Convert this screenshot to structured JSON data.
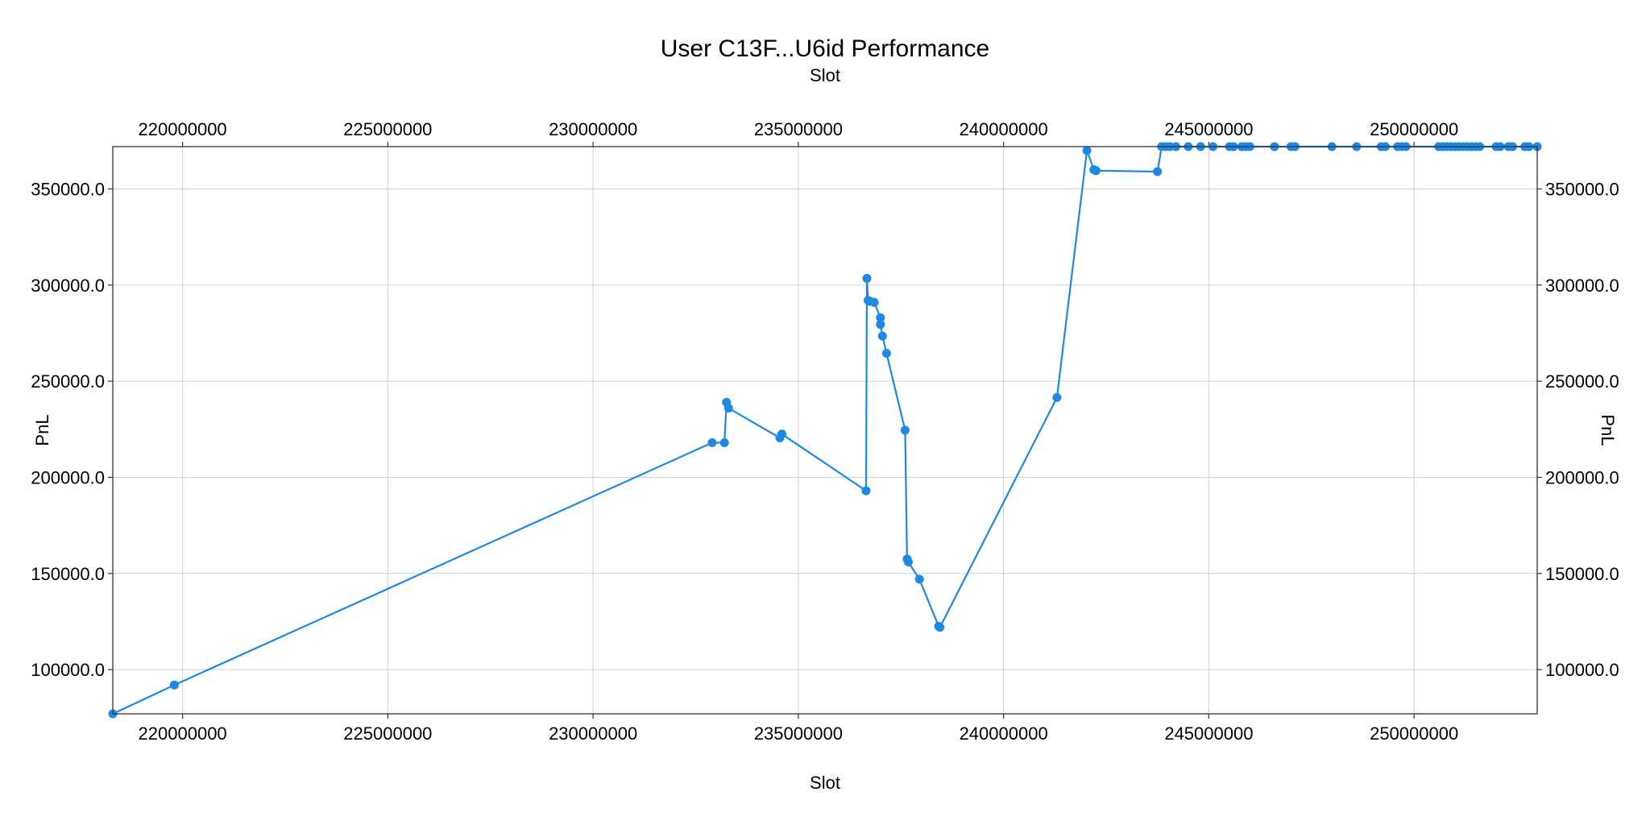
{
  "chart_data": {
    "type": "line",
    "title": "User C13F...U6id Performance",
    "xlabel": "Slot",
    "x2label": "Slot",
    "ylabel": "PnL",
    "y2label": "PnL",
    "xlim": [
      218300000,
      253000000
    ],
    "ylim": [
      77000,
      372000
    ],
    "xticks": [
      220000000,
      225000000,
      230000000,
      235000000,
      240000000,
      245000000,
      250000000
    ],
    "xtick_labels": [
      "220000000",
      "225000000",
      "230000000",
      "235000000",
      "240000000",
      "245000000",
      "250000000"
    ],
    "yticks": [
      100000,
      150000,
      200000,
      250000,
      300000,
      350000
    ],
    "ytick_labels": [
      "100000.0",
      "150000.0",
      "200000.0",
      "250000.0",
      "300000.0",
      "350000.0"
    ],
    "grid": true,
    "line_color": "#1e88e5",
    "series": [
      {
        "x": [
          218300000,
          219800000,
          232900000,
          233200000,
          233250000,
          233300000,
          234550000,
          234600000,
          236650000,
          236670000,
          236700000,
          236750000,
          236850000,
          237000000,
          237000000,
          237050000,
          237150000,
          237600000,
          237650000,
          237680000,
          237950000,
          238420000,
          238450000,
          241300000,
          242030000,
          242200000,
          242250000,
          243750000,
          243850000,
          243950000,
          244050000,
          244200000,
          244500000,
          244800000,
          245100000,
          245500000,
          245600000,
          245800000,
          245900000,
          246000000,
          246600000,
          247000000,
          247100000,
          248000000,
          248600000,
          249200000,
          249300000,
          249600000,
          249700000,
          249800000,
          250600000,
          250700000,
          250800000,
          250900000,
          251000000,
          251100000,
          251200000,
          251300000,
          251400000,
          251500000,
          251600000,
          252000000,
          252100000,
          252300000,
          252400000,
          252700000,
          252800000,
          253000000
        ],
        "y": [
          77000,
          92000,
          218000,
          218000,
          239000,
          236000,
          220500,
          222500,
          193000,
          303500,
          292000,
          291500,
          291000,
          283000,
          279500,
          273500,
          264500,
          224500,
          157500,
          156000,
          147000,
          122500,
          122000,
          241500,
          370000,
          360000,
          359500,
          359000,
          372000,
          372000,
          372000,
          372000,
          372000,
          372000,
          372000,
          372000,
          372000,
          372000,
          372000,
          372000,
          372000,
          372000,
          372000,
          372000,
          372000,
          372000,
          372000,
          372000,
          372000,
          372000,
          372000,
          372000,
          372000,
          372000,
          372000,
          372000,
          372000,
          372000,
          372000,
          372000,
          372000,
          372000,
          372000,
          372000,
          372000,
          372000,
          372000,
          372000
        ]
      }
    ]
  }
}
